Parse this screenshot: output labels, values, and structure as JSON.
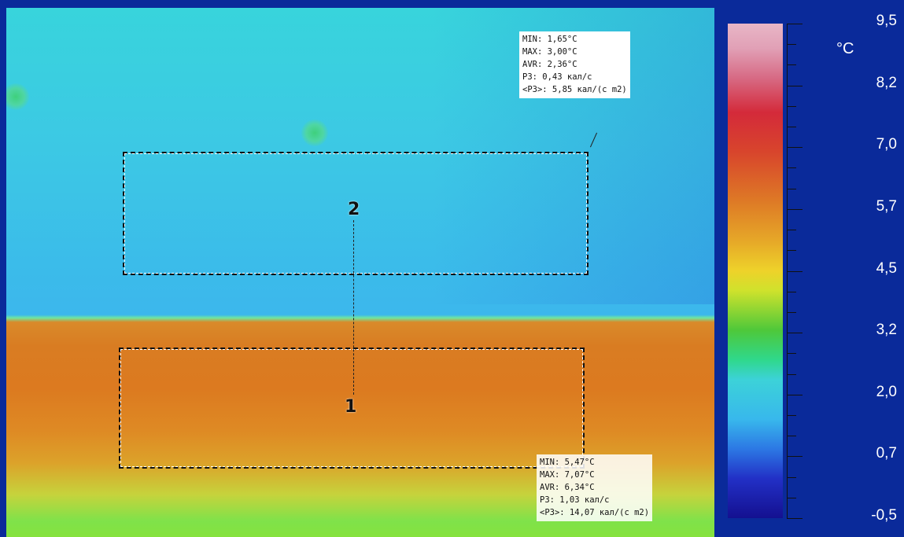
{
  "colorscale": {
    "unit": "°C",
    "labels": [
      "9,5",
      "8,2",
      "7,0",
      "5,7",
      "4,5",
      "3,2",
      "2,0",
      "0,7",
      "-0,5"
    ]
  },
  "regions": [
    {
      "id": "2",
      "label": "2",
      "stats": {
        "min": "MIN:  1,65°C",
        "max": "MAX:  3,00°C",
        "avr": "AVR:  2,36°C",
        "p3": "P3:  0,43 кал/с",
        "p3_avg": "<P3>:  5,85 кал/(с m2)"
      }
    },
    {
      "id": "1",
      "label": "1",
      "stats": {
        "min": "MIN:  5,47°C",
        "max": "MAX:  7,07°C",
        "avr": "AVR:  6,34°C",
        "p3": "P3:  1,03 кал/с",
        "p3_avg": "<P3>:  14,07 кал/(с m2)"
      }
    }
  ],
  "colors": {
    "frame": "#0a2a9a",
    "cold_zone": "#3bbbea",
    "warm_zone": "#d97c22"
  },
  "icons": [
    "hotspot-marker"
  ]
}
